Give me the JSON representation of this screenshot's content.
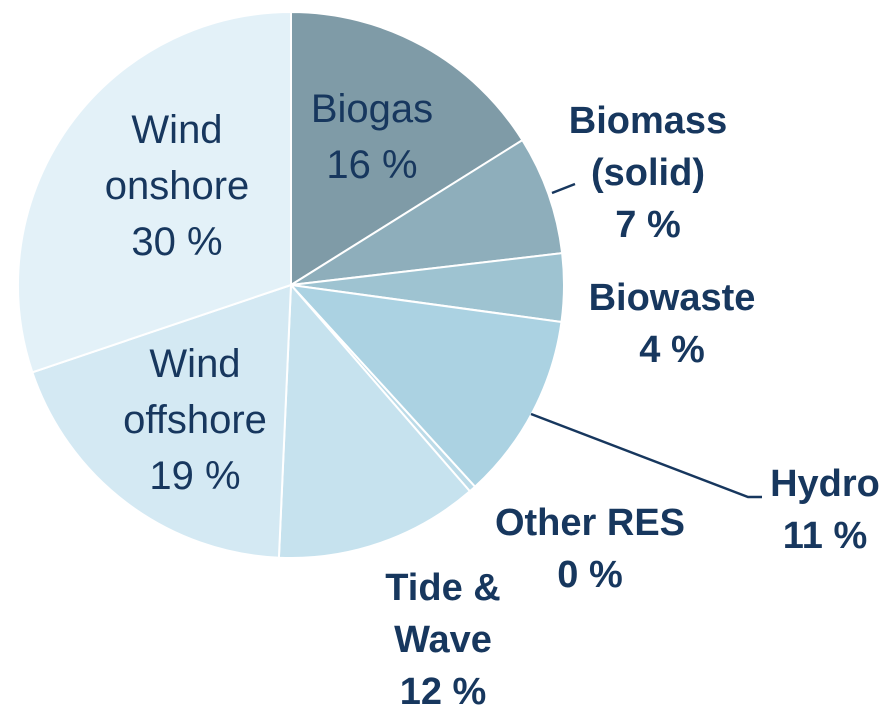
{
  "chart_data": {
    "type": "pie",
    "slices": [
      {
        "name": "Biogas",
        "label_lines": [
          "Biogas",
          "16 %"
        ],
        "value": 16,
        "color": "#7f9ba7",
        "label_style": "inside"
      },
      {
        "name": "Biomass (solid)",
        "label_lines": [
          "Biomass",
          "(solid)",
          "7 %"
        ],
        "value": 7,
        "color": "#8eaebb",
        "label_style": "outside"
      },
      {
        "name": "Biowaste",
        "label_lines": [
          "Biowaste",
          "4 %"
        ],
        "value": 4,
        "color": "#9ec3d1",
        "label_style": "outside"
      },
      {
        "name": "Hydro",
        "label_lines": [
          "Hydro",
          "11 %"
        ],
        "value": 11,
        "color": "#abd2e2",
        "label_style": "outside"
      },
      {
        "name": "Other RES",
        "label_lines": [
          "Other RES",
          "0 %"
        ],
        "value": 0.4,
        "color": "#bcdbe8",
        "label_style": "outside"
      },
      {
        "name": "Tide & Wave",
        "label_lines": [
          "Tide &",
          "Wave",
          "12 %"
        ],
        "value": 12,
        "color": "#c6e2ee",
        "label_style": "outside"
      },
      {
        "name": "Wind offshore",
        "label_lines": [
          "Wind",
          "offshore",
          "19 %"
        ],
        "value": 19,
        "color": "#d4e9f3",
        "label_style": "inside"
      },
      {
        "name": "Wind onshore",
        "label_lines": [
          "Wind",
          "onshore",
          "30 %"
        ],
        "value": 30,
        "color": "#e3f1f8",
        "label_style": "inside"
      }
    ],
    "start_angle_deg": 0,
    "direction": "clockwise",
    "legend": "none"
  }
}
